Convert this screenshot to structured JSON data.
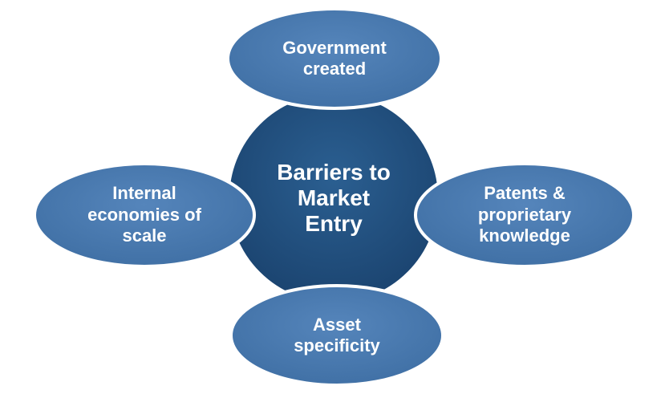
{
  "center": {
    "label": "Barriers to\nMarket\nEntry",
    "color": "#1f4e79"
  },
  "nodes": [
    {
      "id": "top",
      "label": "Government\ncreated"
    },
    {
      "id": "left",
      "label": "Internal\neconomies of\nscale"
    },
    {
      "id": "right",
      "label": "Patents &\nproprietary\nknowledge"
    },
    {
      "id": "bottom",
      "label": "Asset\nspecificity"
    }
  ],
  "colors": {
    "node_fill": "#4a7ab0",
    "node_stroke": "#ffffff",
    "center_fill": "#1f4e79"
  }
}
